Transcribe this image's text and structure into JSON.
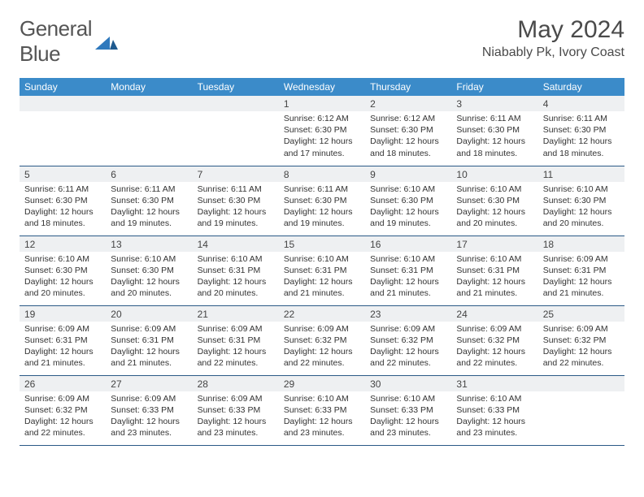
{
  "brand": {
    "name_a": "General",
    "name_b": "Blue"
  },
  "title": {
    "month": "May 2024",
    "location": "Niabably Pk, Ivory Coast"
  },
  "colors": {
    "header_bg": "#3b8bc9",
    "header_text": "#ffffff",
    "daynum_bg": "#eef0f2",
    "border": "#2b5a86",
    "brand_blue": "#2f79bd"
  },
  "weekdays": [
    "Sunday",
    "Monday",
    "Tuesday",
    "Wednesday",
    "Thursday",
    "Friday",
    "Saturday"
  ],
  "weeks": [
    [
      null,
      null,
      null,
      {
        "d": "1",
        "sr": "6:12 AM",
        "ss": "6:30 PM",
        "dl": "12 hours and 17 minutes."
      },
      {
        "d": "2",
        "sr": "6:12 AM",
        "ss": "6:30 PM",
        "dl": "12 hours and 18 minutes."
      },
      {
        "d": "3",
        "sr": "6:11 AM",
        "ss": "6:30 PM",
        "dl": "12 hours and 18 minutes."
      },
      {
        "d": "4",
        "sr": "6:11 AM",
        "ss": "6:30 PM",
        "dl": "12 hours and 18 minutes."
      }
    ],
    [
      {
        "d": "5",
        "sr": "6:11 AM",
        "ss": "6:30 PM",
        "dl": "12 hours and 18 minutes."
      },
      {
        "d": "6",
        "sr": "6:11 AM",
        "ss": "6:30 PM",
        "dl": "12 hours and 19 minutes."
      },
      {
        "d": "7",
        "sr": "6:11 AM",
        "ss": "6:30 PM",
        "dl": "12 hours and 19 minutes."
      },
      {
        "d": "8",
        "sr": "6:11 AM",
        "ss": "6:30 PM",
        "dl": "12 hours and 19 minutes."
      },
      {
        "d": "9",
        "sr": "6:10 AM",
        "ss": "6:30 PM",
        "dl": "12 hours and 19 minutes."
      },
      {
        "d": "10",
        "sr": "6:10 AM",
        "ss": "6:30 PM",
        "dl": "12 hours and 20 minutes."
      },
      {
        "d": "11",
        "sr": "6:10 AM",
        "ss": "6:30 PM",
        "dl": "12 hours and 20 minutes."
      }
    ],
    [
      {
        "d": "12",
        "sr": "6:10 AM",
        "ss": "6:30 PM",
        "dl": "12 hours and 20 minutes."
      },
      {
        "d": "13",
        "sr": "6:10 AM",
        "ss": "6:30 PM",
        "dl": "12 hours and 20 minutes."
      },
      {
        "d": "14",
        "sr": "6:10 AM",
        "ss": "6:31 PM",
        "dl": "12 hours and 20 minutes."
      },
      {
        "d": "15",
        "sr": "6:10 AM",
        "ss": "6:31 PM",
        "dl": "12 hours and 21 minutes."
      },
      {
        "d": "16",
        "sr": "6:10 AM",
        "ss": "6:31 PM",
        "dl": "12 hours and 21 minutes."
      },
      {
        "d": "17",
        "sr": "6:10 AM",
        "ss": "6:31 PM",
        "dl": "12 hours and 21 minutes."
      },
      {
        "d": "18",
        "sr": "6:09 AM",
        "ss": "6:31 PM",
        "dl": "12 hours and 21 minutes."
      }
    ],
    [
      {
        "d": "19",
        "sr": "6:09 AM",
        "ss": "6:31 PM",
        "dl": "12 hours and 21 minutes."
      },
      {
        "d": "20",
        "sr": "6:09 AM",
        "ss": "6:31 PM",
        "dl": "12 hours and 21 minutes."
      },
      {
        "d": "21",
        "sr": "6:09 AM",
        "ss": "6:31 PM",
        "dl": "12 hours and 22 minutes."
      },
      {
        "d": "22",
        "sr": "6:09 AM",
        "ss": "6:32 PM",
        "dl": "12 hours and 22 minutes."
      },
      {
        "d": "23",
        "sr": "6:09 AM",
        "ss": "6:32 PM",
        "dl": "12 hours and 22 minutes."
      },
      {
        "d": "24",
        "sr": "6:09 AM",
        "ss": "6:32 PM",
        "dl": "12 hours and 22 minutes."
      },
      {
        "d": "25",
        "sr": "6:09 AM",
        "ss": "6:32 PM",
        "dl": "12 hours and 22 minutes."
      }
    ],
    [
      {
        "d": "26",
        "sr": "6:09 AM",
        "ss": "6:32 PM",
        "dl": "12 hours and 22 minutes."
      },
      {
        "d": "27",
        "sr": "6:09 AM",
        "ss": "6:33 PM",
        "dl": "12 hours and 23 minutes."
      },
      {
        "d": "28",
        "sr": "6:09 AM",
        "ss": "6:33 PM",
        "dl": "12 hours and 23 minutes."
      },
      {
        "d": "29",
        "sr": "6:10 AM",
        "ss": "6:33 PM",
        "dl": "12 hours and 23 minutes."
      },
      {
        "d": "30",
        "sr": "6:10 AM",
        "ss": "6:33 PM",
        "dl": "12 hours and 23 minutes."
      },
      {
        "d": "31",
        "sr": "6:10 AM",
        "ss": "6:33 PM",
        "dl": "12 hours and 23 minutes."
      },
      null
    ]
  ],
  "labels": {
    "sunrise": "Sunrise:",
    "sunset": "Sunset:",
    "daylight": "Daylight:"
  }
}
